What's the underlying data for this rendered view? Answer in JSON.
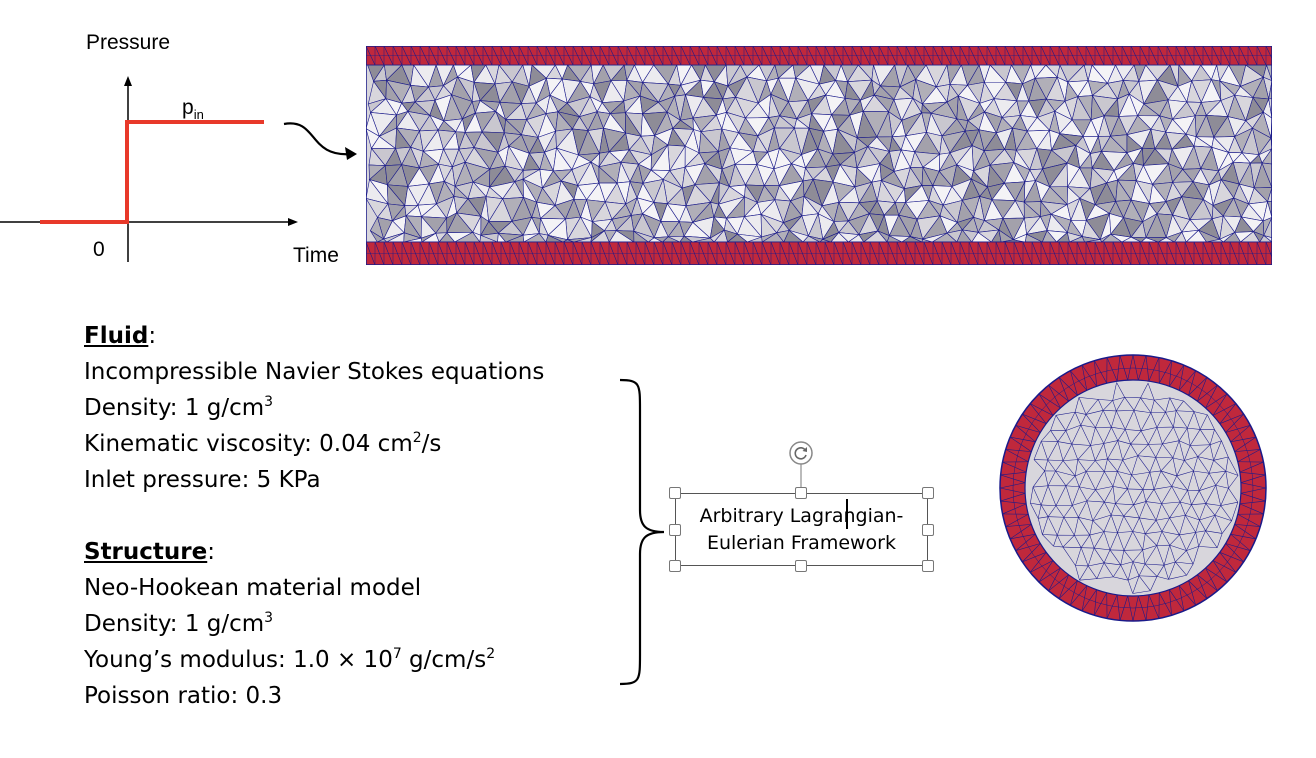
{
  "pressure_graph": {
    "y_label": "Pressure",
    "x_label": "Time",
    "origin_label": "0",
    "series_label_main": "p",
    "series_label_sub": "in",
    "step_color": "#e8392a"
  },
  "fluid": {
    "heading": "Fluid",
    "lines": [
      {
        "pre": "Incompressible Navier Stokes equations",
        "sup": "",
        "post": ""
      },
      {
        "pre": "Density: 1 g/cm",
        "sup": "3",
        "post": ""
      },
      {
        "pre": "Kinematic viscosity: 0.04 cm",
        "sup": "2",
        "post": "/s"
      },
      {
        "pre": "Inlet pressure: 5 KPa",
        "sup": "",
        "post": ""
      }
    ]
  },
  "structure": {
    "heading": "Structure",
    "lines": [
      {
        "pre": "Neo-Hookean material model",
        "sup": "",
        "post": ""
      },
      {
        "pre": "Density: 1 g/cm",
        "sup": "3",
        "post": ""
      },
      {
        "pre": "Young’s modulus: 1.0 × 10",
        "sup": "7",
        "post": " g/cm/s",
        "sup2": "2"
      },
      {
        "pre": "Poisson ratio: 0.3",
        "sup": "",
        "post": ""
      }
    ]
  },
  "framework_box": {
    "line1": "Arbitrary Lagrangian-",
    "line2": "Eulerian Framework"
  },
  "colors": {
    "wall": "#c0283c",
    "mesh_line": "#1a1a8a",
    "fluid_fill": "#d8d6dc",
    "fluid_dark": "#8e8c97"
  },
  "icons": {
    "rotate_handle": "rotate-icon"
  }
}
